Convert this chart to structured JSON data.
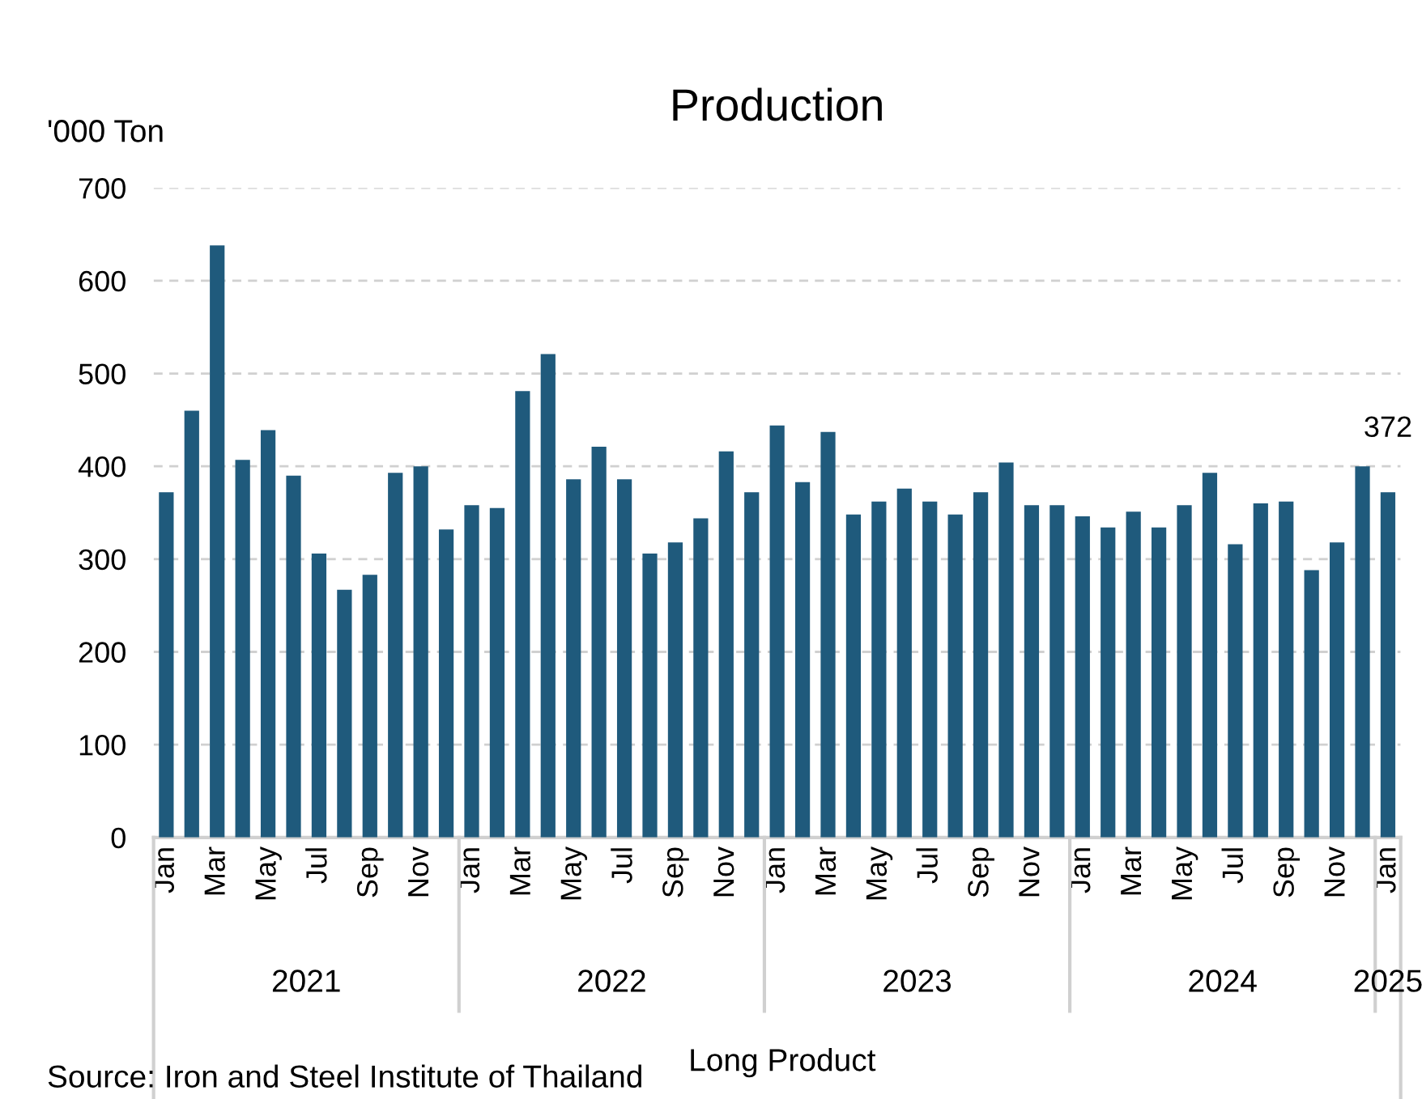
{
  "chart_data": {
    "type": "bar",
    "title": "Production",
    "ylabel": "'000 Ton",
    "xlabel": "Long Product",
    "categories": [
      "Jan",
      null,
      "Mar",
      null,
      "May",
      null,
      "Jul",
      null,
      "Sep",
      null,
      "Nov",
      null,
      "Jan",
      null,
      "Mar",
      null,
      "May",
      null,
      "Jul",
      null,
      "Sep",
      null,
      "Nov",
      null,
      "Jan",
      null,
      "Mar",
      null,
      "May",
      null,
      "Jul",
      null,
      "Sep",
      null,
      "Nov",
      null,
      "Jan",
      null,
      "Mar",
      null,
      "May",
      null,
      "Jul",
      null,
      "Sep",
      null,
      "Nov",
      null,
      "Jan"
    ],
    "values": [
      372,
      460,
      638,
      407,
      439,
      390,
      306,
      267,
      283,
      393,
      400,
      332,
      358,
      355,
      481,
      521,
      386,
      421,
      386,
      306,
      318,
      344,
      416,
      372,
      444,
      383,
      437,
      348,
      362,
      376,
      362,
      348,
      372,
      404,
      358,
      358,
      346,
      334,
      351,
      334,
      358,
      393,
      316,
      360,
      362,
      288,
      318,
      400,
      372
    ],
    "value_labels": [
      null,
      null,
      null,
      null,
      null,
      null,
      null,
      null,
      null,
      null,
      null,
      null,
      null,
      null,
      null,
      null,
      null,
      null,
      null,
      null,
      null,
      null,
      null,
      null,
      null,
      null,
      null,
      null,
      null,
      null,
      null,
      null,
      null,
      null,
      null,
      null,
      null,
      null,
      null,
      null,
      null,
      null,
      null,
      null,
      null,
      null,
      null,
      null,
      "372"
    ],
    "color": "#1f5a7c",
    "ylim": [
      0,
      700
    ],
    "yticks": [
      0,
      100,
      200,
      300,
      400,
      500,
      600,
      700
    ],
    "grid": "y",
    "annotations": [
      "2021",
      "2022",
      "2023",
      "2024",
      "2025",
      "Source: Iron and Steel Institute of Thailand"
    ]
  }
}
